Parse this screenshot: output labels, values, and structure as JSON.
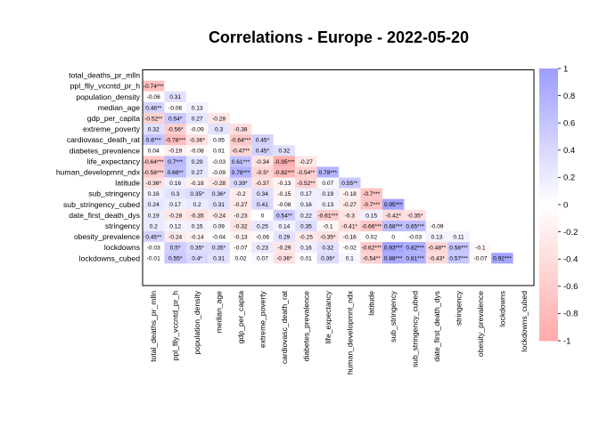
{
  "chart_data": {
    "type": "heatmap",
    "title": "Correlations - Europe -  2022-05-20",
    "variables": [
      "total_deaths_pr_mlln",
      "ppl_flly_vccntd_pr_h",
      "population_density",
      "median_age",
      "gdp_per_capita",
      "extreme_poverty",
      "cardiovasc_death_rat",
      "diabetes_prevalence",
      "life_expectancy",
      "human_developmnt_ndx",
      "latitude",
      "sub_stringency",
      "sub_stringency_cubed",
      "date_first_death_dys",
      "stringency",
      "obesity_prevalence",
      "lockdowns",
      "lockdowns_cubed"
    ],
    "cells": [
      [
        "-0.74***"
      ],
      [
        "-0.06",
        "0.31"
      ],
      [
        "0.46**",
        "-0.06",
        "0.13"
      ],
      [
        "-0.52**",
        "0.54*",
        "0.27",
        "-0.28"
      ],
      [
        "0.32",
        "-0.56*",
        "-0.09",
        "0.3",
        "-0.38"
      ],
      [
        "0.6***",
        "-0.78***",
        "-0.36*",
        "0.05",
        "-0.64***",
        "0.45*"
      ],
      [
        "0.04",
        "-0.19",
        "-0.08",
        "0.01",
        "-0.47**",
        "0.45*",
        "0.32"
      ],
      [
        "-0.64***",
        "0.7***",
        "0.29",
        "-0.03",
        "0.61***",
        "-0.34",
        "-0.95***",
        "-0.27"
      ],
      [
        "-0.58***",
        "0.66**",
        "0.27",
        "-0.09",
        "0.78***",
        "-0.5*",
        "-0.82***",
        "-0.54**",
        "0.78***"
      ],
      [
        "-0.36*",
        "0.16",
        "-0.18",
        "-0.28",
        "0.39*",
        "-0.37",
        "-0.13",
        "-0.52**",
        "0.07",
        "0.55**"
      ],
      [
        "0.16",
        "0.3",
        "0.35*",
        "0.36*",
        "-0.2",
        "0.34",
        "-0.15",
        "0.17",
        "0.19",
        "-0.18",
        "-0.7***"
      ],
      [
        "0.24",
        "0.17",
        "0.2",
        "0.31",
        "-0.27",
        "0.41",
        "-0.08",
        "0.16",
        "0.13",
        "-0.27",
        "-0.7***",
        "0.95***"
      ],
      [
        "0.19",
        "-0.28",
        "-0.35",
        "-0.24",
        "-0.23",
        "0",
        "0.54**",
        "0.22",
        "-0.61***",
        "-0.3",
        "0.15",
        "-0.42*",
        "-0.35*"
      ],
      [
        "0.2",
        "0.12",
        "0.15",
        "0.09",
        "-0.32",
        "0.25",
        "0.14",
        "0.35",
        "-0.1",
        "-0.41*",
        "-0.66***",
        "0.68***",
        "0.65***",
        "-0.09"
      ],
      [
        "0.45**",
        "-0.24",
        "-0.14",
        "-0.04",
        "-0.13",
        "-0.06",
        "0.29",
        "-0.25",
        "-0.35*",
        "-0.16",
        "0.02",
        "0",
        "-0.03",
        "0.13",
        "0.11"
      ],
      [
        "-0.03",
        "0.5*",
        "0.35*",
        "0.35*",
        "-0.07",
        "0.23",
        "-0.29",
        "0.16",
        "0.32",
        "-0.02",
        "-0.62***",
        "0.93***",
        "0.82***",
        "-0.48**",
        "0.58***",
        "-0.1"
      ],
      [
        "-0.01",
        "0.55*",
        "0.4*",
        "0.31",
        "0.02",
        "0.07",
        "-0.36*",
        "0.01",
        "0.36*",
        "0.1",
        "-0.54**",
        "0.88***",
        "0.81***",
        "-0.43*",
        "0.57***",
        "-0.07",
        "0.92***"
      ]
    ],
    "colorbar": {
      "range": [
        -1,
        1
      ],
      "ticks": [
        "1",
        "0.8",
        "0.6",
        "0.4",
        "0.2",
        "0",
        "-0.2",
        "-0.4",
        "-0.6",
        "-0.8",
        "-1"
      ],
      "positive_color": "#7777ff",
      "negative_color": "#ff8888",
      "neutral_color": "#ffffff"
    }
  }
}
